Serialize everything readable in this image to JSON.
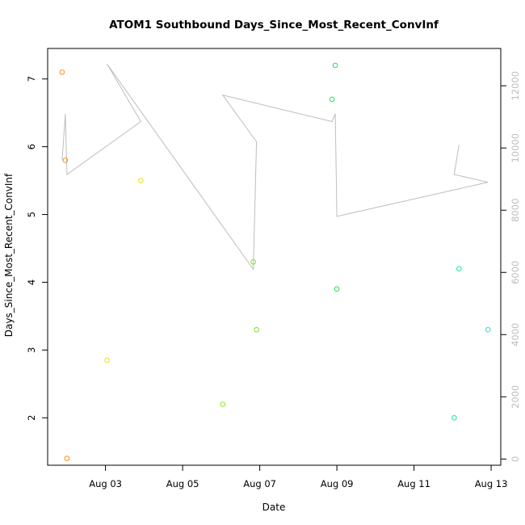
{
  "chart_data": {
    "type": "scatter",
    "title": "ATOM1 Southbound Days_Since_Most_Recent_ConvInf",
    "xlabel": "Date",
    "ylabel": "Days_Since_Most_Recent_ConvInf",
    "x_tick_labels": [
      "Aug 03",
      "Aug 05",
      "Aug 07",
      "Aug 09",
      "Aug 11",
      "Aug 13"
    ],
    "x_ticks": [
      "2021-08-03",
      "2021-08-05",
      "2021-08-07",
      "2021-08-09",
      "2021-08-11",
      "2021-08-13"
    ],
    "xlim": [
      "2021-08-01T12:00",
      "2021-08-13T06:00"
    ],
    "y_ticks": [
      2,
      3,
      4,
      5,
      6,
      7
    ],
    "ylim": [
      1.3,
      7.45
    ],
    "y2_ticks": [
      0,
      2000,
      4000,
      6000,
      8000,
      10000,
      12000
    ],
    "y2lim": [
      -200,
      13200
    ],
    "points": [
      {
        "x": "2021-08-01T21:00",
        "y": 7.1,
        "color": "#ff8c1a"
      },
      {
        "x": "2021-08-01T23:00",
        "y": 5.8,
        "color": "#ff8c1a"
      },
      {
        "x": "2021-08-02T00:00",
        "y": 1.4,
        "color": "#ff8c1a"
      },
      {
        "x": "2021-08-03T01:00",
        "y": 2.85,
        "color": "#e6e61a"
      },
      {
        "x": "2021-08-03T22:00",
        "y": 5.5,
        "color": "#e6e61a"
      },
      {
        "x": "2021-08-06T01:00",
        "y": 2.2,
        "color": "#8ee61a"
      },
      {
        "x": "2021-08-06T20:00",
        "y": 4.3,
        "color": "#70e61a"
      },
      {
        "x": "2021-08-06T22:00",
        "y": 3.3,
        "color": "#70e61a"
      },
      {
        "x": "2021-08-08T21:00",
        "y": 6.7,
        "color": "#1ae64d"
      },
      {
        "x": "2021-08-08T23:00",
        "y": 7.2,
        "color": "#1ae64d"
      },
      {
        "x": "2021-08-09T00:00",
        "y": 3.9,
        "color": "#1ae64d"
      },
      {
        "x": "2021-08-12T01:00",
        "y": 2.0,
        "color": "#1ae6a6"
      },
      {
        "x": "2021-08-12T04:00",
        "y": 4.2,
        "color": "#1ae6a6"
      },
      {
        "x": "2021-08-12T22:00",
        "y": 3.3,
        "color": "#1ae6d2"
      }
    ],
    "line_series_y2": {
      "color": "#bdbdbd",
      "points": [
        {
          "x": "2021-08-01T21:00",
          "y2": 9600
        },
        {
          "x": "2021-08-01T23:00",
          "y2": 11100
        },
        {
          "x": "2021-08-02T00:00",
          "y2": 9150
        },
        {
          "x": "2021-08-03T22:00",
          "y2": 10850
        },
        {
          "x": "2021-08-03T01:00",
          "y2": 12700
        },
        {
          "x": "2021-08-06T20:00",
          "y2": 6100
        },
        {
          "x": "2021-08-06T22:00",
          "y2": 10200
        },
        {
          "x": "2021-08-06T01:00",
          "y2": 11700
        },
        {
          "x": "2021-08-08T21:00",
          "y2": 10850
        },
        {
          "x": "2021-08-08T23:00",
          "y2": 11100
        },
        {
          "x": "2021-08-09T00:00",
          "y2": 7800
        },
        {
          "x": "2021-08-12T22:00",
          "y2": 8900
        },
        {
          "x": "2021-08-12T01:00",
          "y2": 9150
        },
        {
          "x": "2021-08-12T04:00",
          "y2": 10100
        }
      ]
    },
    "grid": false,
    "legend": "none"
  }
}
